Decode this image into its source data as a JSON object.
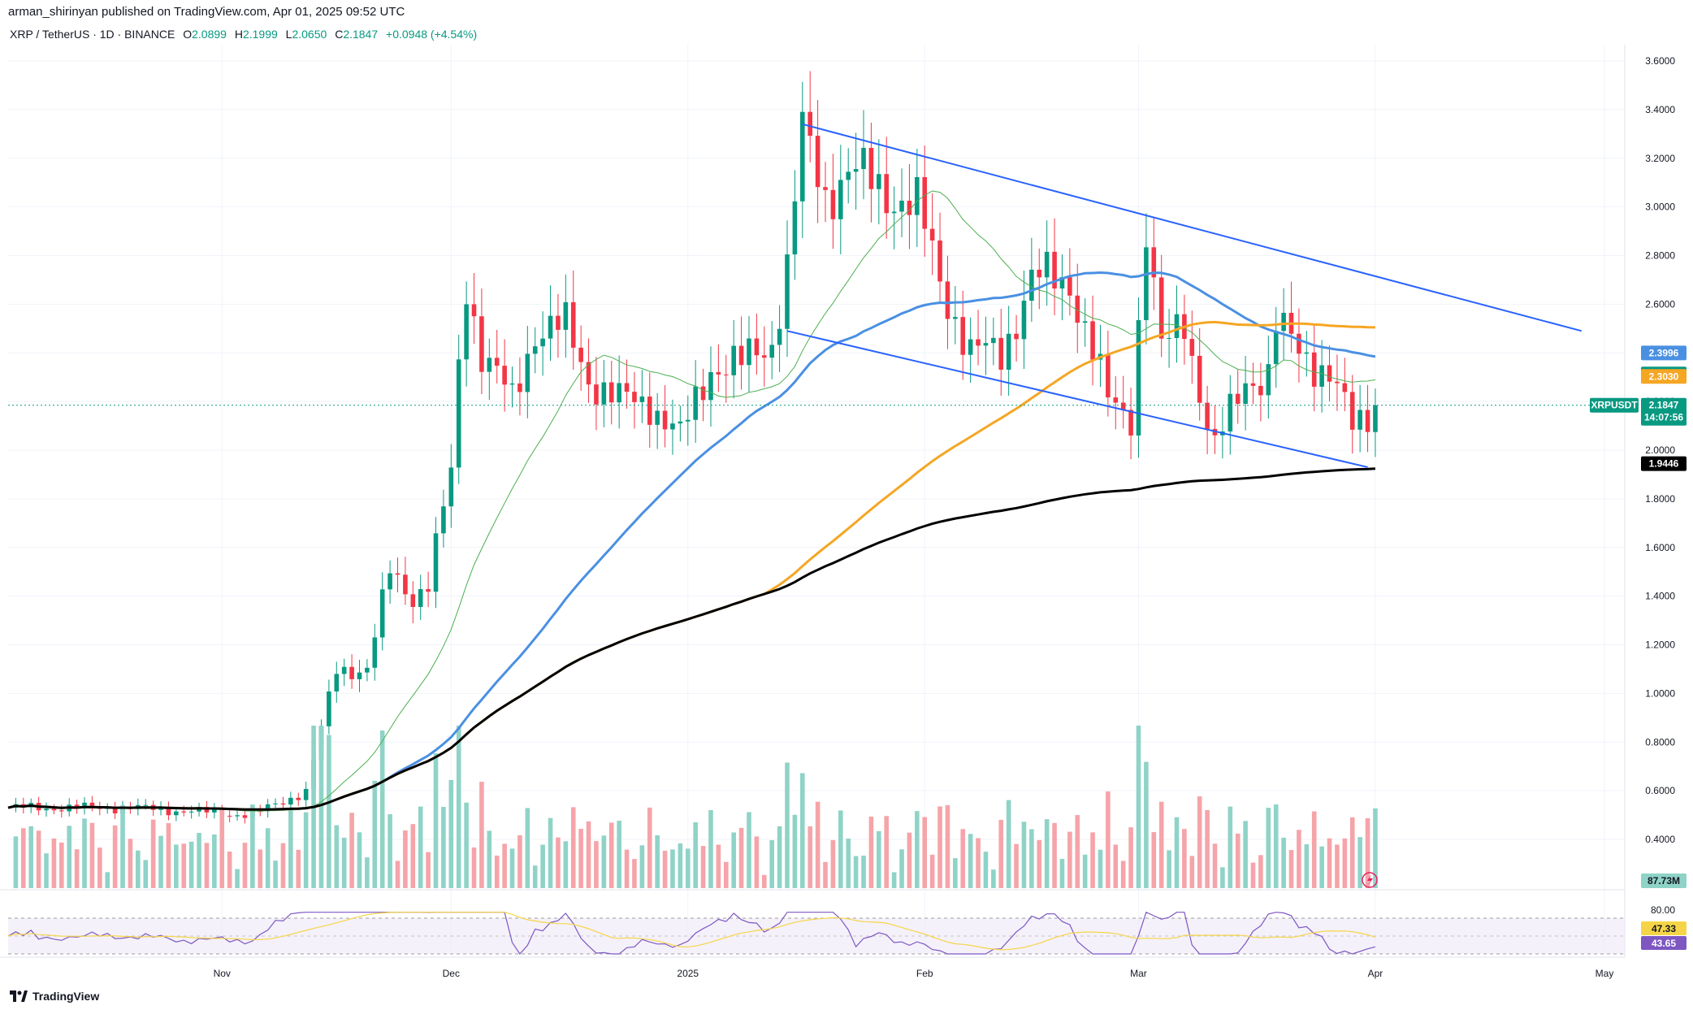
{
  "header": {
    "publisher": "arman_shirinyan published on TradingView.com, Apr 01, 2025 09:52 UTC",
    "symbol": "XRP / TetherUS · 1D · BINANCE",
    "ohlc": {
      "o_label": "O",
      "o_value": "2.0899",
      "h_label": "H",
      "h_value": "2.1999",
      "l_label": "L",
      "l_value": "2.0650",
      "c_label": "C",
      "c_value": "2.1847",
      "change": "+0.0948 (+4.54%)"
    }
  },
  "footer": {
    "brand": "TradingView"
  },
  "colors": {
    "up": "#089981",
    "down": "#f23645",
    "ma_short": "#4caf50",
    "ma_blue": "#4a90e2",
    "ma_orange": "#f5a623",
    "ma_black": "#000000",
    "trendline": "#2962ff",
    "rsi": "#7e57c2",
    "rsi_ma": "#f5d547"
  },
  "chart_data": {
    "type": "candlestick",
    "symbol": "XRPUSDT",
    "timeframe": "1D",
    "x_axis": {
      "ticks": [
        "Nov",
        "Dec",
        "2025",
        "Feb",
        "Mar",
        "Apr",
        "May"
      ]
    },
    "y_axis": {
      "ticks": [
        "3.6000",
        "3.4000",
        "3.2000",
        "3.0000",
        "2.8000",
        "2.6000",
        "2.4000",
        "2.2000",
        "2.0000",
        "1.8000",
        "1.6000",
        "1.4000",
        "1.2000",
        "1.0000",
        "0.8000",
        "0.6000",
        "0.4000"
      ],
      "range": [
        0.25,
        3.8
      ]
    },
    "price_tags": [
      {
        "label": "2.3996",
        "value": 2.3996,
        "color": "#4a90e2"
      },
      {
        "label": "2.3132",
        "value": 2.3132,
        "color": "#089981"
      },
      {
        "label": "2.3030",
        "value": 2.303,
        "color": "#f5a623"
      },
      {
        "label": "2.1847",
        "value": 2.1847,
        "color": "#089981",
        "symbol": "XRPUSDT",
        "countdown": "14:07:56"
      },
      {
        "label": "1.9446",
        "value": 1.9446,
        "color": "#000000"
      }
    ],
    "volume_tag": "87.73M",
    "rsi": {
      "levels": [
        "80.00"
      ],
      "tags": [
        {
          "label": "47.33",
          "color": "#f5d547"
        },
        {
          "label": "43.65",
          "color": "#7e57c2"
        }
      ]
    },
    "series_keypoints": {
      "close": [
        {
          "d": "2024-10-04",
          "v": 0.53
        },
        {
          "d": "2024-10-20",
          "v": 0.53
        },
        {
          "d": "2024-11-05",
          "v": 0.5
        },
        {
          "d": "2024-11-12",
          "v": 0.6
        },
        {
          "d": "2024-11-16",
          "v": 1.1
        },
        {
          "d": "2024-11-20",
          "v": 1.1
        },
        {
          "d": "2024-11-23",
          "v": 1.5
        },
        {
          "d": "2024-11-26",
          "v": 1.4
        },
        {
          "d": "2024-11-28",
          "v": 1.45
        },
        {
          "d": "2024-12-01",
          "v": 1.9
        },
        {
          "d": "2024-12-02",
          "v": 2.35
        },
        {
          "d": "2024-12-03",
          "v": 2.7
        },
        {
          "d": "2024-12-05",
          "v": 2.4
        },
        {
          "d": "2024-12-09",
          "v": 2.2
        },
        {
          "d": "2024-12-12",
          "v": 2.5
        },
        {
          "d": "2024-12-16",
          "v": 2.5
        },
        {
          "d": "2024-12-19",
          "v": 2.3
        },
        {
          "d": "2024-12-23",
          "v": 2.2
        },
        {
          "d": "2024-12-27",
          "v": 2.2
        },
        {
          "d": "2024-12-31",
          "v": 2.05
        },
        {
          "d": "2025-01-04",
          "v": 2.35
        },
        {
          "d": "2025-01-08",
          "v": 2.35
        },
        {
          "d": "2025-01-12",
          "v": 2.45
        },
        {
          "d": "2025-01-14",
          "v": 2.75
        },
        {
          "d": "2025-01-16",
          "v": 3.3
        },
        {
          "d": "2025-01-19",
          "v": 3.05
        },
        {
          "d": "2025-01-22",
          "v": 3.15
        },
        {
          "d": "2025-01-26",
          "v": 3.08
        },
        {
          "d": "2025-01-31",
          "v": 3.0
        },
        {
          "d": "2025-02-03",
          "v": 2.7
        },
        {
          "d": "2025-02-07",
          "v": 2.4
        },
        {
          "d": "2025-02-11",
          "v": 2.4
        },
        {
          "d": "2025-02-15",
          "v": 2.7
        },
        {
          "d": "2025-02-20",
          "v": 2.7
        },
        {
          "d": "2025-02-25",
          "v": 2.2
        },
        {
          "d": "2025-02-28",
          "v": 2.15
        },
        {
          "d": "2025-03-02",
          "v": 2.9
        },
        {
          "d": "2025-03-04",
          "v": 2.4
        },
        {
          "d": "2025-03-07",
          "v": 2.55
        },
        {
          "d": "2025-03-10",
          "v": 2.1
        },
        {
          "d": "2025-03-11",
          "v": 2.0
        },
        {
          "d": "2025-03-15",
          "v": 2.3
        },
        {
          "d": "2025-03-18",
          "v": 2.3
        },
        {
          "d": "2025-03-19",
          "v": 2.5
        },
        {
          "d": "2025-03-23",
          "v": 2.4
        },
        {
          "d": "2025-03-26",
          "v": 2.3
        },
        {
          "d": "2025-03-29",
          "v": 2.1
        },
        {
          "d": "2025-04-01",
          "v": 2.1847
        }
      ],
      "ma_blue_end": 2.3996,
      "ma_short_end": 2.3132,
      "ma_orange_end": 2.303,
      "ma_black_end": 1.9446
    }
  }
}
